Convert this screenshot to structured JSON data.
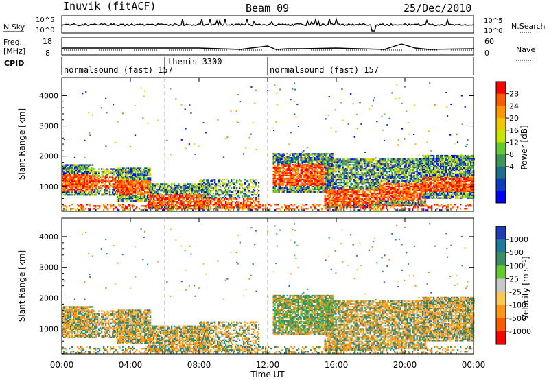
{
  "header": {
    "station": "Inuvik (fitACF)",
    "beam": "Beam 09",
    "date": "25/Dec/2010"
  },
  "nsky_panel": {
    "label": "N.Sky",
    "ticks": [
      "10^5",
      "10^0"
    ],
    "right_label": "N.Search",
    "right_ticks": [
      "10^5",
      "10^0"
    ]
  },
  "freq_panel": {
    "label_top": "Freq.",
    "label_bottom": "[MHz]",
    "ticks": [
      "18",
      "8"
    ],
    "right_label": "Nave",
    "right_ticks": [
      "60",
      "0"
    ]
  },
  "cpid": {
    "label": "CPID",
    "segments": [
      {
        "name": "normalsound (fast) 157",
        "start": 0,
        "end": 6
      },
      {
        "name": "themis 3300",
        "start": 6,
        "end": 12
      },
      {
        "name": "normalsound (fast) 157",
        "start": 12,
        "end": 24
      }
    ]
  },
  "power_colorbar": {
    "title": "Power [dB]",
    "ticks": [
      "28",
      "24",
      "20",
      "16",
      "12",
      "8",
      "4"
    ],
    "colors": [
      "#ff0000",
      "#ff5a00",
      "#ff9600",
      "#f0c800",
      "#c8e600",
      "#64c832",
      "#3c965a",
      "#1e6e8c",
      "#0a3cbe",
      "#0000ff"
    ]
  },
  "velocity_colorbar": {
    "title": "Velocity [m s⁻¹]",
    "ticks": [
      "1000",
      "500",
      "100",
      "25",
      "-25",
      "-100",
      "-500",
      "-1000"
    ],
    "colors": [
      "#1e3cb4",
      "#1e78a0",
      "#3c8c64",
      "#64c832",
      "#c8c8c8",
      "#ffc850",
      "#ff9614",
      "#ff5a00",
      "#ff0000"
    ]
  },
  "chart_data": [
    {
      "type": "heatmap",
      "name": "power",
      "ylabel": "Slant Range [km]",
      "y_ticks": [
        1000,
        2000,
        3000,
        4000
      ],
      "ylim": [
        180,
        4600
      ],
      "xlim": [
        0,
        24
      ],
      "colorbar": "Power [dB]"
    },
    {
      "type": "heatmap",
      "name": "velocity",
      "ylabel": "Slant Range [km]",
      "y_ticks": [
        1000,
        2000,
        3000,
        4000
      ],
      "ylim": [
        180,
        4600
      ],
      "xlim": [
        0,
        24
      ],
      "colorbar": "Velocity [m s⁻¹]"
    }
  ],
  "x_axis": {
    "title": "Time UT",
    "ticks": [
      "00:00",
      "04:00",
      "08:00",
      "12:00",
      "16:00",
      "20:00",
      "00:00"
    ],
    "tick_hours": [
      0,
      4,
      8,
      12,
      16,
      20,
      24
    ]
  }
}
